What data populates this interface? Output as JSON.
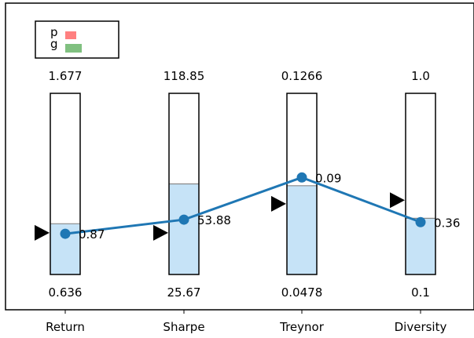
{
  "chart_data": {
    "type": "parallel-bar-line",
    "categories": [
      "Return",
      "Sharpe",
      "Treynor",
      "Diversity"
    ],
    "range_max_labels": [
      "1.677",
      "118.85",
      "0.1266",
      "1.0"
    ],
    "range_min_labels": [
      "0.636",
      "25.67",
      "0.0478",
      "0.1"
    ],
    "range_min": [
      0.636,
      25.67,
      0.0478,
      0.1
    ],
    "range_max": [
      1.677,
      118.85,
      0.1266,
      1.0
    ],
    "bar_fill_fraction": [
      0.28,
      0.5,
      0.49,
      0.31
    ],
    "marker_fraction": [
      0.23,
      0.23,
      0.39,
      0.41
    ],
    "series": [
      {
        "values": [
          0.87,
          53.88,
          0.09,
          0.36
        ],
        "value_labels": [
          "0.87",
          "53.88",
          "0.09",
          "0.36"
        ],
        "color": "#1f77b4"
      }
    ],
    "legend": {
      "placement": "top-left",
      "entries": [
        {
          "label": "p",
          "color": "#ff8080"
        },
        {
          "label": "g",
          "color": "#80c080"
        }
      ]
    },
    "bar_fill_color": "#c6e3f7",
    "marker_icon": "right-triangle-icon",
    "grid": false
  }
}
